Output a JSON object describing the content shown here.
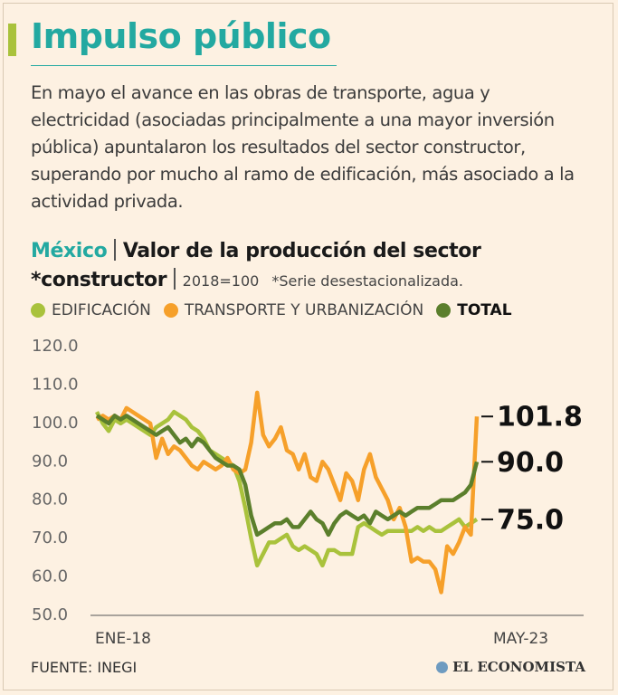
{
  "header": {
    "title": "Impulso público",
    "subtitle": "En mayo el avance en las obras de transporte, agua y electricidad (asociadas principalmente a una mayor inversión pública) apuntalaron los resultados del sector constructor, superando por mucho al ramo de edificación, más asociado a la actividad privada."
  },
  "chart_data": {
    "type": "line",
    "region": "México",
    "title": "Valor de la producción del sector *constructor",
    "units": "2018=100",
    "note": "*Serie desestacionalizada.",
    "categories": [
      "ENE-18",
      null,
      null,
      null,
      null,
      null,
      null,
      null,
      null,
      null,
      null,
      null,
      null,
      null,
      null,
      null,
      null,
      null,
      null,
      null,
      null,
      null,
      null,
      null,
      null,
      null,
      null,
      null,
      null,
      null,
      null,
      null,
      null,
      null,
      null,
      null,
      null,
      null,
      null,
      null,
      null,
      null,
      null,
      null,
      null,
      null,
      null,
      null,
      null,
      null,
      null,
      null,
      null,
      null,
      null,
      null,
      null,
      null,
      null,
      null,
      null,
      null,
      null,
      null,
      "MAY-23"
    ],
    "series": [
      {
        "name": "EDIFICACIÓN",
        "color": "#a9c23c",
        "values": [
          103,
          100,
          98,
          101,
          100,
          101,
          100,
          99,
          98,
          97,
          99,
          100,
          101,
          103,
          102,
          101,
          99,
          98,
          96,
          93,
          92,
          91,
          90,
          89,
          85,
          78,
          70,
          63,
          66,
          69,
          69,
          70,
          71,
          68,
          67,
          68,
          67,
          66,
          63,
          67,
          67,
          66,
          66,
          66,
          73,
          74,
          73,
          72,
          71,
          72,
          72,
          72,
          72,
          72,
          73,
          72,
          73,
          72,
          72,
          73,
          74,
          75,
          73,
          74,
          75.0
        ],
        "value_labels": [
          null,
          null,
          null,
          null,
          null,
          null,
          null,
          null,
          null,
          null,
          null,
          null,
          null,
          null,
          null,
          null,
          null,
          null,
          null,
          null,
          null,
          null,
          null,
          null,
          null,
          null,
          null,
          null,
          null,
          null,
          null,
          null,
          null,
          null,
          null,
          null,
          null,
          null,
          null,
          null,
          null,
          null,
          null,
          null,
          null,
          null,
          null,
          null,
          null,
          null,
          null,
          null,
          null,
          null,
          null,
          null,
          null,
          null,
          null,
          null,
          null,
          null,
          null,
          null,
          "75.0"
        ]
      },
      {
        "name": "TRANSPORTE Y URBANIZACIÓN",
        "color": "#f6a02a",
        "values": [
          101,
          102,
          101,
          102,
          101,
          104,
          103,
          102,
          101,
          100,
          91,
          96,
          92,
          94,
          93,
          91,
          89,
          88,
          90,
          89,
          88,
          89,
          91,
          88,
          87,
          88,
          95,
          108,
          97,
          94,
          96,
          99,
          93,
          92,
          88,
          92,
          86,
          85,
          90,
          88,
          84,
          80,
          87,
          85,
          80,
          88,
          92,
          86,
          83,
          80,
          75,
          78,
          73,
          64,
          65,
          64,
          64,
          62,
          56,
          68,
          66,
          69,
          73,
          71,
          101.8
        ],
        "value_labels": [
          null,
          null,
          null,
          null,
          null,
          null,
          null,
          null,
          null,
          null,
          null,
          null,
          null,
          null,
          null,
          null,
          null,
          null,
          null,
          null,
          null,
          null,
          null,
          null,
          null,
          null,
          null,
          null,
          null,
          null,
          null,
          null,
          null,
          null,
          null,
          null,
          null,
          null,
          null,
          null,
          null,
          null,
          null,
          null,
          null,
          null,
          null,
          null,
          null,
          null,
          null,
          null,
          null,
          null,
          null,
          null,
          null,
          null,
          null,
          null,
          null,
          null,
          null,
          null,
          "101.8"
        ]
      },
      {
        "name": "TOTAL",
        "color": "#5b7f2c",
        "values": [
          102,
          101,
          100,
          102,
          101,
          102,
          101,
          100,
          99,
          98,
          97,
          98,
          99,
          97,
          95,
          96,
          94,
          96,
          95,
          93,
          91,
          90,
          89,
          89,
          88,
          84,
          76,
          71,
          72,
          73,
          74,
          74,
          75,
          73,
          73,
          75,
          77,
          75,
          74,
          71,
          74,
          76,
          77,
          76,
          75,
          76,
          74,
          77,
          76,
          75,
          76,
          77,
          76,
          77,
          78,
          78,
          78,
          79,
          80,
          80,
          80,
          81,
          82,
          84,
          90.0
        ],
        "value_labels": [
          null,
          null,
          null,
          null,
          null,
          null,
          null,
          null,
          null,
          null,
          null,
          null,
          null,
          null,
          null,
          null,
          null,
          null,
          null,
          null,
          null,
          null,
          null,
          null,
          null,
          null,
          null,
          null,
          null,
          null,
          null,
          null,
          null,
          null,
          null,
          null,
          null,
          null,
          null,
          null,
          null,
          null,
          null,
          null,
          null,
          null,
          null,
          null,
          null,
          null,
          null,
          null,
          null,
          null,
          null,
          null,
          null,
          null,
          null,
          null,
          null,
          null,
          null,
          null,
          "90.0"
        ]
      }
    ],
    "ylim": [
      50,
      120
    ],
    "yticks": [
      {
        "value": 50,
        "label": "50.0"
      },
      {
        "value": 60,
        "label": "60.0"
      },
      {
        "value": 70,
        "label": "70.0"
      },
      {
        "value": 80,
        "label": "80.0"
      },
      {
        "value": 90,
        "label": "90.0"
      },
      {
        "value": 100,
        "label": "100.0"
      },
      {
        "value": 110,
        "label": "110.0"
      },
      {
        "value": 120,
        "label": "120.0"
      }
    ],
    "grid": false,
    "source": "FUENTE: INEGI"
  },
  "footer": {
    "logo": "EL ECONOMISTA"
  }
}
